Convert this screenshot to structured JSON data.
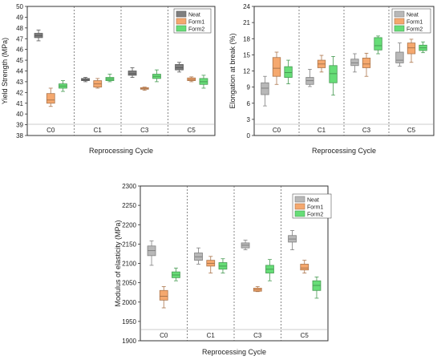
{
  "chart_data": [
    {
      "type": "box",
      "xlabel": "Reprocessing Cycle",
      "ylabel": "Yield Strength (MPa)",
      "ylim": [
        38,
        50
      ],
      "yticks": [
        38,
        39,
        40,
        41,
        42,
        43,
        44,
        45,
        46,
        47,
        48,
        49,
        50
      ],
      "categories": [
        "C0",
        "C1",
        "C3",
        "C5"
      ],
      "legend_placement": "top-right",
      "series": [
        {
          "name": "Neat",
          "color": "#7f7f7f",
          "boxes": [
            {
              "min": 46.8,
              "q1": 47.1,
              "median": 47.3,
              "q3": 47.5,
              "max": 47.8
            },
            {
              "min": 43.0,
              "q1": 43.1,
              "median": 43.2,
              "q3": 43.3,
              "max": 43.4
            },
            {
              "min": 43.4,
              "q1": 43.6,
              "median": 43.75,
              "q3": 44.0,
              "max": 44.3
            },
            {
              "min": 43.9,
              "q1": 44.1,
              "median": 44.3,
              "q3": 44.6,
              "max": 44.8
            }
          ]
        },
        {
          "name": "Form1",
          "color": "#f5a86e",
          "boxes": [
            {
              "min": 40.7,
              "q1": 41.0,
              "median": 41.3,
              "q3": 41.9,
              "max": 42.4
            },
            {
              "min": 42.4,
              "q1": 42.5,
              "median": 42.8,
              "q3": 43.1,
              "max": 43.3
            },
            {
              "min": 42.2,
              "q1": 42.3,
              "median": 42.35,
              "q3": 42.45,
              "max": 42.5
            },
            {
              "min": 43.0,
              "q1": 43.1,
              "median": 43.2,
              "q3": 43.35,
              "max": 43.45
            }
          ]
        },
        {
          "name": "Form2",
          "color": "#66dd77",
          "boxes": [
            {
              "min": 42.1,
              "q1": 42.4,
              "median": 42.6,
              "q3": 42.8,
              "max": 43.1
            },
            {
              "min": 43.0,
              "q1": 43.1,
              "median": 43.25,
              "q3": 43.4,
              "max": 43.7
            },
            {
              "min": 43.0,
              "q1": 43.3,
              "median": 43.5,
              "q3": 43.7,
              "max": 44.1
            },
            {
              "min": 42.4,
              "q1": 42.75,
              "median": 43.0,
              "q3": 43.3,
              "max": 43.6
            }
          ]
        }
      ]
    },
    {
      "type": "box",
      "xlabel": "Reprocessing Cycle",
      "ylabel": "Elongation at break (%)",
      "ylim": [
        0,
        24
      ],
      "yticks": [
        0,
        3,
        6,
        9,
        12,
        15,
        18,
        21,
        24
      ],
      "categories": [
        "C0",
        "C1",
        "C3",
        "C5"
      ],
      "legend_placement": "top-right",
      "series": [
        {
          "name": "Neat",
          "color": "#b8b8b8",
          "boxes": [
            {
              "min": 5.5,
              "q1": 7.6,
              "median": 8.8,
              "q3": 9.8,
              "max": 11.0
            },
            {
              "min": 9.1,
              "q1": 9.5,
              "median": 10.2,
              "q3": 10.8,
              "max": 12.3
            },
            {
              "min": 11.8,
              "q1": 13.0,
              "median": 13.5,
              "q3": 14.2,
              "max": 15.2
            },
            {
              "min": 12.9,
              "q1": 13.5,
              "median": 14.0,
              "q3": 15.5,
              "max": 17.2
            }
          ]
        },
        {
          "name": "Form1",
          "color": "#f5a86e",
          "boxes": [
            {
              "min": 9.5,
              "q1": 11.0,
              "median": 12.5,
              "q3": 14.5,
              "max": 15.5
            },
            {
              "min": 11.8,
              "q1": 12.6,
              "median": 13.3,
              "q3": 14.0,
              "max": 14.9
            },
            {
              "min": 11.0,
              "q1": 12.6,
              "median": 13.3,
              "q3": 14.4,
              "max": 15.3
            },
            {
              "min": 13.6,
              "q1": 15.2,
              "median": 16.3,
              "q3": 17.2,
              "max": 17.9
            }
          ]
        },
        {
          "name": "Form2",
          "color": "#66dd77",
          "boxes": [
            {
              "min": 9.6,
              "q1": 10.8,
              "median": 11.7,
              "q3": 12.8,
              "max": 14.0
            },
            {
              "min": 7.5,
              "q1": 9.8,
              "median": 11.5,
              "q3": 13.0,
              "max": 14.7
            },
            {
              "min": 15.2,
              "q1": 15.9,
              "median": 16.7,
              "q3": 18.2,
              "max": 18.5
            },
            {
              "min": 15.4,
              "q1": 15.8,
              "median": 16.3,
              "q3": 16.8,
              "max": 17.4
            }
          ]
        }
      ]
    },
    {
      "type": "box",
      "xlabel": "Reprocessing Cycle",
      "ylabel": "Modulus of elasticity (MPa)",
      "ylim": [
        1900,
        2300
      ],
      "yticks": [
        1900,
        1950,
        2000,
        2050,
        2100,
        2150,
        2200,
        2250,
        2300
      ],
      "categories": [
        "C0",
        "C1",
        "C3",
        "C5"
      ],
      "legend_placement": "top-right",
      "series": [
        {
          "name": "Neat",
          "color": "#b8b8b8",
          "boxes": [
            {
              "min": 2095,
              "q1": 2120,
              "median": 2133,
              "q3": 2145,
              "max": 2158
            },
            {
              "min": 2098,
              "q1": 2108,
              "median": 2117,
              "q3": 2127,
              "max": 2140
            },
            {
              "min": 2135,
              "q1": 2140,
              "median": 2147,
              "q3": 2153,
              "max": 2160
            },
            {
              "min": 2135,
              "q1": 2155,
              "median": 2163,
              "q3": 2172,
              "max": 2185
            }
          ]
        },
        {
          "name": "Form1",
          "color": "#f5a86e",
          "boxes": [
            {
              "min": 1985,
              "q1": 2005,
              "median": 2015,
              "q3": 2030,
              "max": 2040
            },
            {
              "min": 2075,
              "q1": 2093,
              "median": 2100,
              "q3": 2108,
              "max": 2118
            },
            {
              "min": 2027,
              "q1": 2028,
              "median": 2032,
              "q3": 2036,
              "max": 2040
            },
            {
              "min": 2075,
              "q1": 2083,
              "median": 2088,
              "q3": 2098,
              "max": 2108
            }
          ]
        },
        {
          "name": "Form2",
          "color": "#66dd77",
          "boxes": [
            {
              "min": 2055,
              "q1": 2063,
              "median": 2070,
              "q3": 2078,
              "max": 2088
            },
            {
              "min": 2075,
              "q1": 2085,
              "median": 2093,
              "q3": 2102,
              "max": 2112
            },
            {
              "min": 2055,
              "q1": 2075,
              "median": 2085,
              "q3": 2095,
              "max": 2110
            },
            {
              "min": 2010,
              "q1": 2030,
              "median": 2043,
              "q3": 2055,
              "max": 2065
            }
          ]
        }
      ]
    }
  ]
}
